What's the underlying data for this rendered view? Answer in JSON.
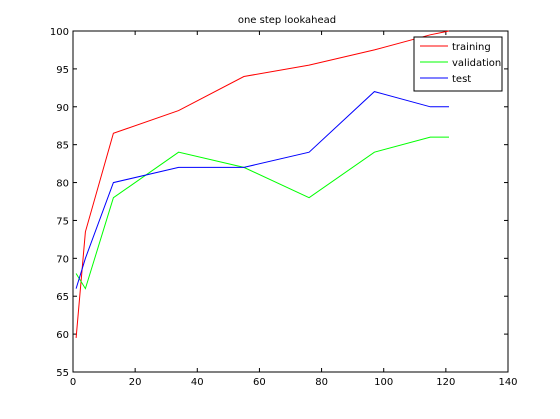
{
  "chart_data": {
    "type": "line",
    "title": "one step lookahead",
    "xlabel": "",
    "ylabel": "",
    "xlim": [
      0,
      140
    ],
    "ylim": [
      55,
      100
    ],
    "xticks": [
      0,
      20,
      40,
      60,
      80,
      100,
      120,
      140
    ],
    "yticks": [
      55,
      60,
      65,
      70,
      75,
      80,
      85,
      90,
      95,
      100
    ],
    "grid": false,
    "legend_position": "top-right",
    "series": [
      {
        "name": "training",
        "color": "#ff0000",
        "x": [
          1,
          4,
          13,
          34,
          55,
          76,
          97,
          115,
          121
        ],
        "y": [
          59.5,
          73.5,
          86.5,
          89.5,
          94,
          95.5,
          97.5,
          99.5,
          100
        ]
      },
      {
        "name": "validation",
        "color": "#00ff00",
        "x": [
          1,
          4,
          13,
          34,
          55,
          76,
          97,
          115,
          121
        ],
        "y": [
          68,
          66,
          78,
          84,
          82,
          78,
          84,
          86,
          86
        ]
      },
      {
        "name": "test",
        "color": "#0000ff",
        "x": [
          1,
          4,
          13,
          34,
          55,
          76,
          97,
          115,
          121
        ],
        "y": [
          66,
          70,
          80,
          82,
          82,
          84,
          92,
          90,
          90
        ]
      }
    ]
  }
}
